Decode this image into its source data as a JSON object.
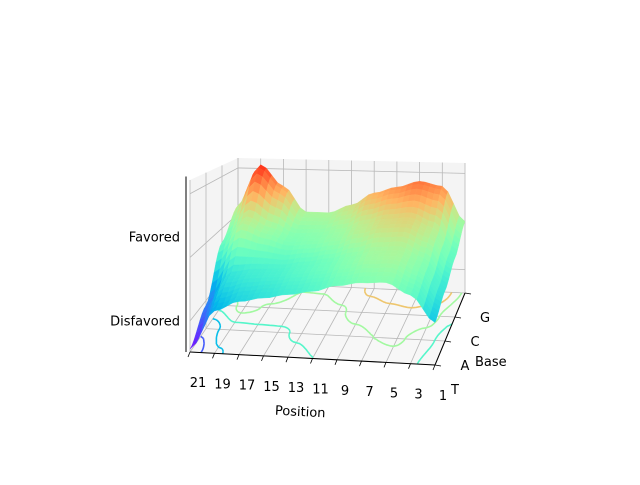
{
  "chart_data": {
    "type": "surface3d",
    "title": "",
    "xlabel": "Position",
    "ylabel": "Base",
    "zlabel": "",
    "x_ticks": [
      "21",
      "19",
      "17",
      "15",
      "13",
      "11",
      "9",
      "7",
      "5",
      "3",
      "1"
    ],
    "y_ticks": [
      "T",
      "A",
      "C",
      "G"
    ],
    "z_ticks": [
      "Disfavored",
      "Favored"
    ],
    "x_range": [
      1,
      21
    ],
    "z_range": [
      -2.5,
      3.5
    ],
    "colormap": "rainbow",
    "grid": true,
    "surface_heights": {
      "positions": [
        1,
        3,
        5,
        7,
        9,
        11,
        13,
        15,
        17,
        19,
        21
      ],
      "bases": [
        "T",
        "A",
        "C",
        "G"
      ],
      "values": [
        [
          -0.8,
          -0.4,
          0.1,
          0.8
        ],
        [
          0.2,
          0.6,
          1.2,
          2.4
        ],
        [
          0.6,
          1.0,
          1.6,
          2.6
        ],
        [
          0.5,
          0.9,
          1.5,
          2.3
        ],
        [
          0.3,
          0.6,
          1.2,
          2.0
        ],
        [
          0.0,
          0.3,
          0.8,
          1.4
        ],
        [
          -0.2,
          0.1,
          0.6,
          1.0
        ],
        [
          -0.4,
          -0.1,
          0.5,
          1.0
        ],
        [
          -0.6,
          -0.2,
          0.8,
          2.2
        ],
        [
          -1.0,
          -0.4,
          1.2,
          3.2
        ],
        [
          -2.4,
          -1.6,
          0.2,
          1.2
        ]
      ]
    }
  }
}
